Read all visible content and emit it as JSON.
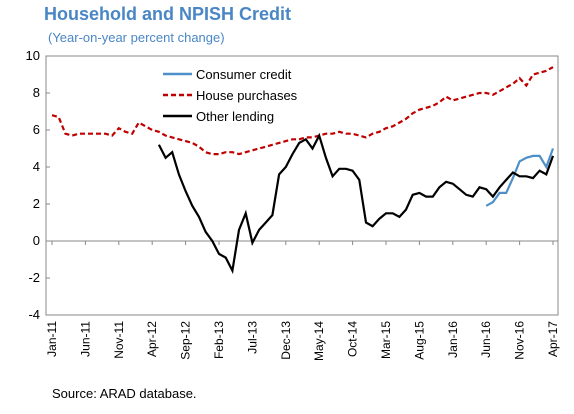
{
  "chart_data": {
    "type": "line",
    "title": "Household and NPISH Credit",
    "subtitle": "(Year-on-year percent change)",
    "source": "Source: ARAD database.",
    "categories": [
      "Jan-11",
      null,
      null,
      null,
      null,
      "Jun-11",
      null,
      null,
      null,
      null,
      "Nov-11",
      null,
      null,
      null,
      null,
      "Apr-12",
      null,
      null,
      null,
      null,
      "Sep-12",
      null,
      null,
      null,
      null,
      "Feb-13",
      null,
      null,
      null,
      null,
      "Jul-13",
      null,
      null,
      null,
      null,
      "Dec-13",
      null,
      null,
      null,
      null,
      "May-14",
      null,
      null,
      null,
      null,
      "Oct-14",
      null,
      null,
      null,
      null,
      "Mar-15",
      null,
      null,
      null,
      null,
      "Aug-15",
      null,
      null,
      null,
      null,
      "Jan-16",
      null,
      null,
      null,
      null,
      "Jun-16",
      null,
      null,
      null,
      null,
      "Nov-16",
      null,
      null,
      null,
      null,
      "Apr-17"
    ],
    "series": [
      {
        "name": "Consumer credit",
        "color": "#4f8fc9",
        "dash": "solid",
        "values": [
          null,
          null,
          null,
          null,
          null,
          null,
          null,
          null,
          null,
          null,
          null,
          null,
          null,
          null,
          null,
          null,
          null,
          null,
          null,
          null,
          null,
          null,
          null,
          null,
          null,
          null,
          null,
          null,
          null,
          null,
          null,
          null,
          null,
          null,
          null,
          null,
          null,
          null,
          null,
          null,
          null,
          null,
          null,
          null,
          null,
          null,
          null,
          null,
          null,
          null,
          null,
          null,
          null,
          null,
          null,
          null,
          null,
          null,
          null,
          null,
          null,
          null,
          null,
          null,
          null,
          1.9,
          2.1,
          2.6,
          2.6,
          3.4,
          4.3,
          4.5,
          4.6,
          4.6,
          4.0,
          5.0
        ]
      },
      {
        "name": "House purchases",
        "color": "#c00000",
        "dash": "dashed",
        "values": [
          6.8,
          6.7,
          5.8,
          5.7,
          5.8,
          5.8,
          5.8,
          5.8,
          5.8,
          5.7,
          6.1,
          5.9,
          5.8,
          6.4,
          6.2,
          6.0,
          5.9,
          5.7,
          5.6,
          5.5,
          5.4,
          5.3,
          5.1,
          4.8,
          4.7,
          4.7,
          4.8,
          4.8,
          4.7,
          4.8,
          4.9,
          5.0,
          5.1,
          5.2,
          5.3,
          5.4,
          5.5,
          5.5,
          5.6,
          5.6,
          5.7,
          5.8,
          5.8,
          5.9,
          5.8,
          5.8,
          5.7,
          5.6,
          5.8,
          5.9,
          6.1,
          6.2,
          6.4,
          6.6,
          6.9,
          7.1,
          7.2,
          7.3,
          7.5,
          7.8,
          7.6,
          7.7,
          7.8,
          7.9,
          8.0,
          8.0,
          7.9,
          8.1,
          8.3,
          8.5,
          8.8,
          8.4,
          9.0,
          9.1,
          9.2,
          9.4
        ]
      },
      {
        "name": "Other lending",
        "color": "#000000",
        "dash": "solid",
        "values": [
          null,
          null,
          null,
          null,
          null,
          null,
          null,
          null,
          null,
          null,
          null,
          null,
          null,
          null,
          null,
          null,
          5.2,
          4.5,
          4.8,
          3.6,
          2.7,
          1.9,
          1.3,
          0.5,
          0.0,
          -0.7,
          -0.9,
          -1.6,
          0.6,
          1.5,
          -0.1,
          0.6,
          1.0,
          1.4,
          3.6,
          4.0,
          4.7,
          5.3,
          5.5,
          5.0,
          5.7,
          4.5,
          3.5,
          3.9,
          3.9,
          3.8,
          3.3,
          1.0,
          0.8,
          1.2,
          1.5,
          1.5,
          1.3,
          1.7,
          2.5,
          2.6,
          2.4,
          2.4,
          2.9,
          3.2,
          3.1,
          2.8,
          2.5,
          2.4,
          2.9,
          2.8,
          2.4,
          2.9,
          3.3,
          3.7,
          3.5,
          3.5,
          3.4,
          3.8,
          3.6,
          4.6
        ]
      }
    ],
    "ylim": [
      -4,
      10
    ],
    "yticks": [
      -4,
      -2,
      0,
      2,
      4,
      6,
      8,
      10
    ],
    "legend": "top-left"
  }
}
